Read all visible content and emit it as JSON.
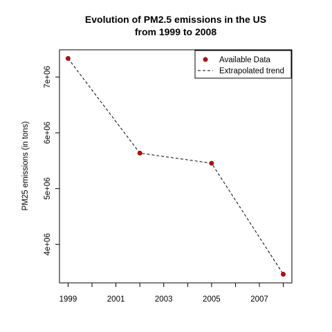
{
  "chart_data": {
    "type": "line",
    "title_line1": "Evolution of PM2.5 emissions in the US",
    "title_line2": "from 1999 to 2008",
    "xlabel": "",
    "ylabel": "PM25 emissions (in tons)",
    "x": [
      1999,
      2002,
      2005,
      2008
    ],
    "series": [
      {
        "name": "Available Data",
        "type": "points",
        "values": [
          7332967,
          5635780,
          5454703,
          3464206
        ],
        "color": "#cc0000"
      },
      {
        "name": "Extrapolated trend",
        "type": "dashed-line",
        "values": [
          7332967,
          5635780,
          5454703,
          3464206
        ],
        "color": "#000000"
      }
    ],
    "xticks": [
      1999,
      2000,
      2001,
      2002,
      2003,
      2004,
      2005,
      2006,
      2007,
      2008
    ],
    "xtick_labels": [
      "1999",
      "2001",
      "2003",
      "2005",
      "2007"
    ],
    "yticks": [
      4000000,
      5000000,
      6000000,
      7000000
    ],
    "ytick_labels": [
      "4e+06",
      "5e+06",
      "6e+06",
      "7e+06"
    ],
    "xlim": [
      1998.64,
      2008.36
    ],
    "ylim": [
      3309176,
      7487997
    ],
    "legend_position": "top-right",
    "grid": false
  }
}
